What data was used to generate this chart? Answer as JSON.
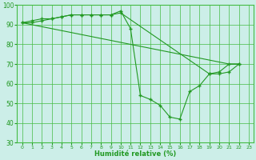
{
  "title": "",
  "xlabel": "Humidité relative (%)",
  "background_color": "#cceee8",
  "grid_color": "#44bb44",
  "line_color": "#229922",
  "ylim": [
    30,
    100
  ],
  "xlim": [
    -0.5,
    23.5
  ],
  "yticks": [
    30,
    40,
    50,
    60,
    70,
    80,
    90,
    100
  ],
  "xticks": [
    0,
    1,
    2,
    3,
    4,
    5,
    6,
    7,
    8,
    9,
    10,
    11,
    12,
    13,
    14,
    15,
    16,
    17,
    18,
    19,
    20,
    21,
    22,
    23
  ],
  "series": [
    {
      "x": [
        0,
        1,
        2,
        3,
        4,
        5,
        6,
        7,
        8,
        9,
        10,
        11,
        12,
        13,
        14,
        15,
        16,
        17,
        18,
        19,
        20,
        21,
        22
      ],
      "y": [
        91,
        92,
        93,
        93,
        94,
        95,
        95,
        95,
        95,
        95,
        97,
        88,
        54,
        52,
        49,
        43,
        42,
        56,
        59,
        65,
        66,
        70,
        70
      ],
      "marker": "+"
    },
    {
      "x": [
        0,
        1,
        2,
        3,
        4,
        5,
        6,
        7,
        8,
        9,
        10,
        19,
        20,
        21,
        22
      ],
      "y": [
        91,
        91,
        92,
        93,
        94,
        95,
        95,
        95,
        95,
        95,
        96,
        65,
        65,
        66,
        70
      ],
      "marker": "+"
    },
    {
      "x": [
        0,
        1,
        2,
        3,
        4,
        5,
        6,
        7,
        8,
        9,
        10,
        11,
        12,
        13,
        14,
        15,
        16,
        17,
        18,
        19,
        20,
        21,
        22
      ],
      "y": [
        91,
        90,
        89,
        88,
        87,
        86,
        85,
        84,
        83,
        82,
        81,
        80,
        79,
        78,
        77,
        76,
        75,
        74,
        73,
        72,
        71,
        70,
        70
      ],
      "marker": null
    }
  ]
}
